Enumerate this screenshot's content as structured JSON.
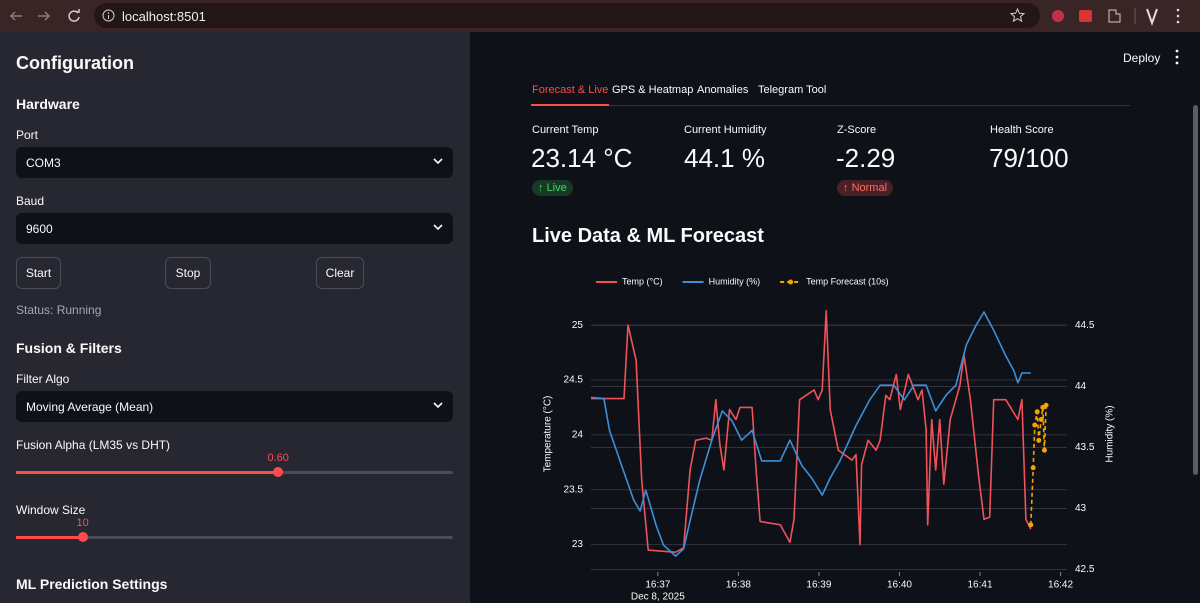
{
  "browser": {
    "url": "localhost:8501"
  },
  "sidebar": {
    "title": "Configuration",
    "hardware_heading": "Hardware",
    "port_label": "Port",
    "port_value": "COM3",
    "baud_label": "Baud",
    "baud_value": "9600",
    "buttons": [
      "Start",
      "Stop",
      "Clear"
    ],
    "status": "Status: Running",
    "fusion_heading": "Fusion & Filters",
    "filter_label": "Filter Algo",
    "filter_value": "Moving Average (Mean)",
    "alpha_label": "Fusion Alpha (LM35 vs DHT)",
    "alpha": {
      "value": 0.6,
      "value_label": "0.60",
      "min": 0,
      "max": 1
    },
    "window_label": "Window Size",
    "window": {
      "value": 10,
      "min": 1,
      "max": 60
    },
    "ml_heading": "ML Prediction Settings"
  },
  "header": {
    "deploy": "Deploy"
  },
  "tabs": {
    "items": [
      "Forecast & Live",
      "GPS & Heatmap",
      "Anomalies",
      "Telegram Tool"
    ],
    "active": 0
  },
  "metrics": [
    {
      "label": "Current Temp",
      "value": "23.14 °C",
      "delta": "Live",
      "delta_color": "green"
    },
    {
      "label": "Current Humidity",
      "value": "44.1 %"
    },
    {
      "label": "Z-Score",
      "value": "-2.29",
      "delta": "Normal",
      "delta_color": "red"
    },
    {
      "label": "Health Score",
      "value": "79/100"
    }
  ],
  "chart_data": {
    "type": "line",
    "title": "Live Data & ML Forecast",
    "ylabel": "Temperature (°C)",
    "y2label": "Humidity (%)",
    "x_sublabel": "Dec 8, 2025",
    "xlim": [
      36.17,
      42.08
    ],
    "xticks": [
      {
        "value": 37,
        "label": "16:37"
      },
      {
        "value": 38,
        "label": "16:38"
      },
      {
        "value": 39,
        "label": "16:39"
      },
      {
        "value": 40,
        "label": "16:40"
      },
      {
        "value": 41,
        "label": "16:41"
      },
      {
        "value": 42,
        "label": "16:42"
      }
    ],
    "ylim": [
      22.75,
      25.32
    ],
    "yticks": [
      23,
      23.5,
      24,
      24.5,
      25
    ],
    "y2lim": [
      42.48,
      44.79
    ],
    "y2ticks": [
      42.5,
      43,
      43.5,
      44,
      44.5
    ],
    "grid": true,
    "legend": "top",
    "series": [
      {
        "name": "Temp (°C)",
        "color": "#f0525a",
        "x": [
          36.17,
          36.58,
          36.63,
          36.73,
          36.8,
          36.88,
          37.05,
          37.22,
          37.32,
          37.4,
          37.47,
          37.6,
          37.67,
          37.72,
          37.77,
          37.82,
          37.89,
          37.97,
          38.02,
          38.17,
          38.22,
          38.27,
          38.52,
          38.64,
          38.69,
          38.76,
          38.94,
          38.99,
          39.04,
          39.09,
          39.14,
          39.24,
          39.41,
          39.46,
          39.51,
          39.53,
          39.61,
          39.71,
          39.76,
          39.83,
          39.88,
          39.96,
          40.01,
          40.11,
          40.23,
          40.28,
          40.33,
          40.35,
          40.4,
          40.45,
          40.5,
          40.55,
          40.63,
          40.75,
          40.8,
          40.88,
          40.98,
          41.05,
          41.12,
          41.17,
          41.32,
          41.47,
          41.52,
          41.57,
          41.63
        ],
        "values": [
          24.33,
          24.33,
          25.0,
          24.68,
          23.59,
          22.95,
          22.94,
          22.93,
          22.97,
          23.68,
          23.95,
          23.97,
          23.95,
          24.32,
          23.91,
          23.68,
          24.23,
          24.14,
          24.25,
          24.25,
          23.68,
          23.21,
          23.18,
          23.02,
          23.23,
          24.32,
          24.41,
          24.32,
          24.41,
          25.13,
          24.23,
          23.86,
          23.77,
          23.82,
          23.0,
          23.73,
          23.95,
          23.86,
          23.95,
          24.36,
          24.32,
          24.55,
          24.23,
          24.55,
          24.32,
          24.41,
          24.05,
          23.18,
          24.14,
          23.68,
          24.14,
          23.55,
          24.14,
          24.45,
          24.73,
          24.32,
          23.64,
          23.23,
          23.25,
          24.32,
          24.32,
          24.14,
          24.32,
          23.23,
          23.14
        ]
      },
      {
        "name": "Humidity (%)",
        "color": "#3d8fd8",
        "axis": "y2",
        "x": [
          36.17,
          36.33,
          36.4,
          36.53,
          36.7,
          36.78,
          36.85,
          36.98,
          37.07,
          37.22,
          37.32,
          37.4,
          37.52,
          37.67,
          37.8,
          37.92,
          38.04,
          38.17,
          38.29,
          38.52,
          38.64,
          38.79,
          38.91,
          39.04,
          39.14,
          39.26,
          39.46,
          39.63,
          39.76,
          39.93,
          40.06,
          40.18,
          40.33,
          40.45,
          40.58,
          40.7,
          40.83,
          40.95,
          41.05,
          41.17,
          41.32,
          41.42,
          41.47,
          41.52,
          41.63
        ],
        "values": [
          43.91,
          43.9,
          43.64,
          43.39,
          43.07,
          42.98,
          43.15,
          42.86,
          42.7,
          42.61,
          42.67,
          42.9,
          43.23,
          43.56,
          43.8,
          43.72,
          43.56,
          43.64,
          43.39,
          43.39,
          43.56,
          43.35,
          43.25,
          43.11,
          43.25,
          43.39,
          43.68,
          43.89,
          44.01,
          44.01,
          43.89,
          44.01,
          44.01,
          43.8,
          43.93,
          44.01,
          44.34,
          44.5,
          44.61,
          44.46,
          44.25,
          44.13,
          44.03,
          44.11,
          44.11
        ]
      },
      {
        "name": "Temp Forecast (10s)",
        "color": "#f5a300",
        "dashed": true,
        "markers": true,
        "x": [
          41.63,
          41.66,
          41.68,
          41.71,
          41.73,
          41.76,
          41.78,
          41.8,
          41.82
        ],
        "values": [
          23.18,
          23.7,
          24.09,
          24.21,
          23.95,
          24.14,
          24.25,
          23.86,
          24.27
        ]
      }
    ]
  }
}
